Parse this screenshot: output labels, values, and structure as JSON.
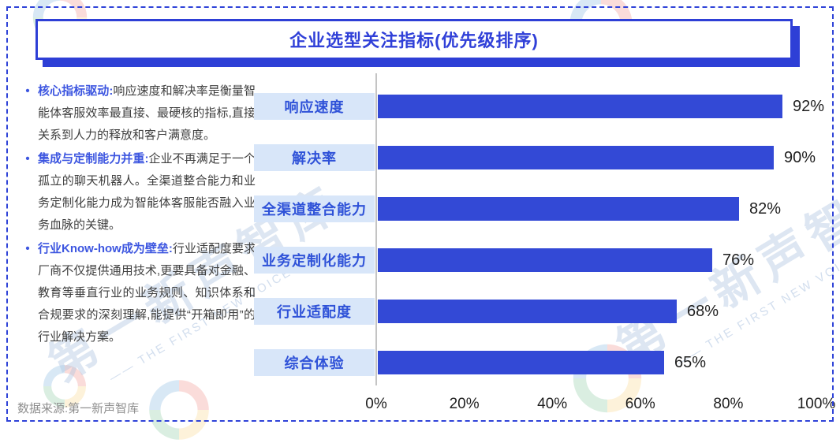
{
  "title": "企业选型关注指标(优先级排序)",
  "bullet_char": "•",
  "bullets": [
    {
      "lead": "核心指标驱动:",
      "body": "响应速度和解决率是衡量智能体客服效率最直接、最硬核的指标,直接关系到人力的释放和客户满意度。"
    },
    {
      "lead": "集成与定制能力并重:",
      "body": "企业不再满足于一个孤立的聊天机器人。全渠道整合能力和业务定制化能力成为智能体客服能否融入业务血脉的关键。"
    },
    {
      "lead": "行业Know-how成为壁垒:",
      "body": "行业适配度要求厂商不仅提供通用技术,更要具备对金融、教育等垂直行业的业务规则、知识体系和合规要求的深刻理解,能提供“开箱即用”的行业解决方案。"
    }
  ],
  "source_note": "数据来源:第一新声智库",
  "watermark": {
    "text_cn": "第一新声智库",
    "text_en": "—— THE FIRST NEW VOICE ——"
  },
  "colors": {
    "bar": "#3349d6",
    "accent_blue": "#2e3fd6",
    "label_bg": "#d8e6f9",
    "label_text": "#2f52d8",
    "axis": "#c4c4c4"
  },
  "chart_data": {
    "type": "bar",
    "orientation": "horizontal",
    "title": "企业选型关注指标(优先级排序)",
    "categories": [
      "响应速度",
      "解决率",
      "全渠道整合能力",
      "业务定制化能力",
      "行业适配度",
      "综合体验"
    ],
    "values": [
      92,
      90,
      82,
      76,
      68,
      65
    ],
    "value_labels": [
      "92%",
      "90%",
      "82%",
      "76%",
      "68%",
      "65%"
    ],
    "x_ticks": [
      "0%",
      "20%",
      "40%",
      "60%",
      "80%",
      "100%"
    ],
    "xlim": [
      0,
      100
    ],
    "grid": false,
    "legend": null,
    "value_label_position": "right-of-bar"
  }
}
